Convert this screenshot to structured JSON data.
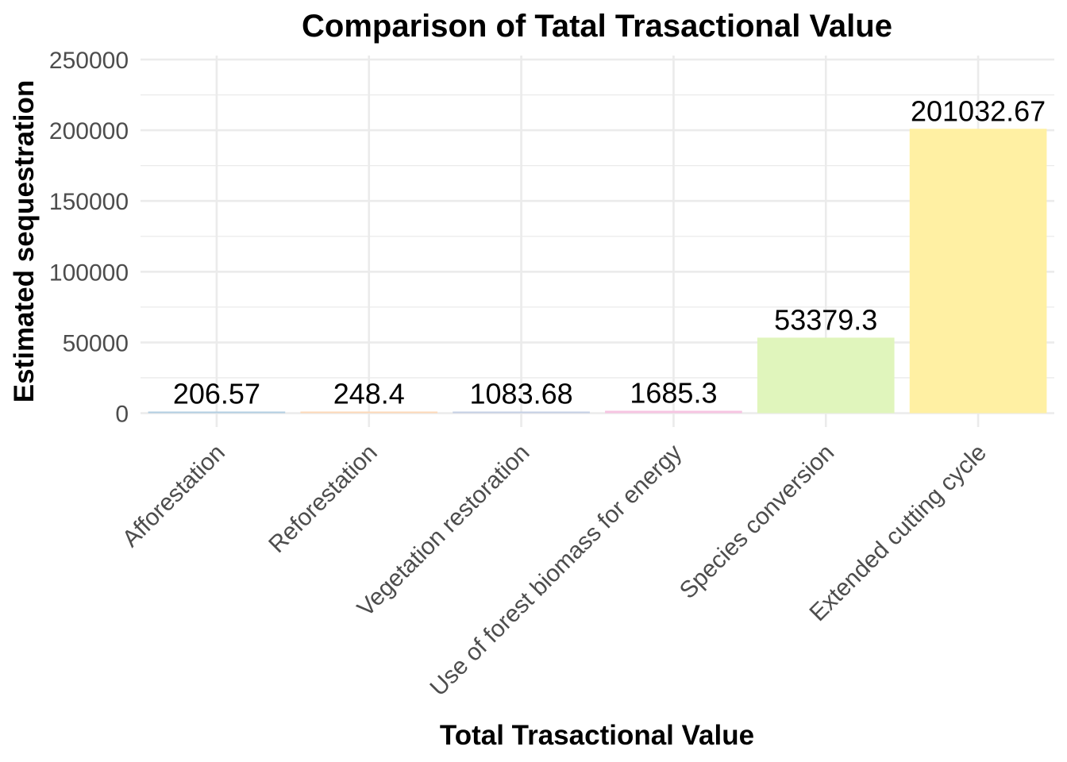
{
  "chart_data": {
    "type": "bar",
    "title": "Comparison of Tatal Trasactional Value",
    "xlabel": "Total Trasactional Value",
    "ylabel": "Estimated sequestration",
    "categories": [
      "Afforestation",
      "Reforestation",
      "Vegetation restoration",
      "Use of forest biomass for energy",
      "Species conversion",
      "Extended cutting cycle"
    ],
    "values": [
      206.57,
      248.4,
      1083.68,
      1685.3,
      53379.3,
      201032.67
    ],
    "value_labels": [
      "206.57",
      "248.4",
      "1083.68",
      "1685.3",
      "53379.3",
      "201032.67"
    ],
    "colors": [
      "#b3cde3",
      "#fddaec",
      "#b3cde3",
      "#f4cae4",
      "#e6f5c9",
      "#fff2ae"
    ],
    "bar_colors": [
      "#b2cee2",
      "#fdd9b8",
      "#c4cfe4",
      "#f6c5e2",
      "#e0f5bc",
      "#fff0a3"
    ],
    "ylim": [
      0,
      250000
    ],
    "yticks": [
      0,
      50000,
      100000,
      150000,
      200000,
      250000
    ],
    "ytick_labels": [
      "0",
      "50000",
      "100000",
      "150000",
      "200000",
      "250000"
    ],
    "grid": true,
    "legend": "none"
  }
}
